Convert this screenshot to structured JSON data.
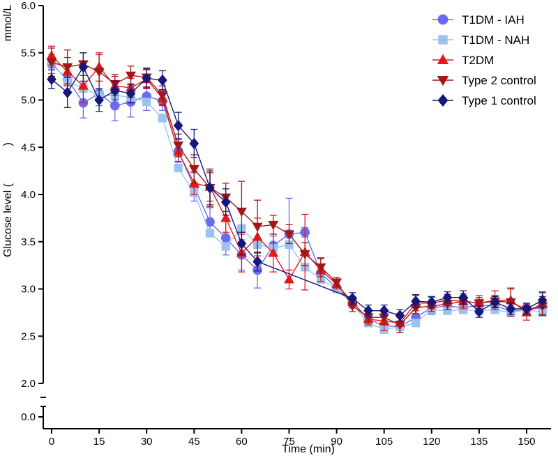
{
  "chart_data": {
    "type": "line",
    "title": "",
    "xlabel": "Time (min)",
    "ylabel": "Glucose level (   )",
    "ylabel_parts": [
      "Glucose level (",
      ")"
    ],
    "y_unit_label": "mmol/L",
    "xlim": [
      0,
      157
    ],
    "ylim": [
      2.0,
      6.0
    ],
    "y_break": true,
    "y_broken_tick": "0.0",
    "x_ticks": [
      0,
      15,
      30,
      45,
      60,
      75,
      90,
      105,
      120,
      135,
      150
    ],
    "x_tick_labels": [
      "0",
      "15",
      "30",
      "45",
      "60",
      "75",
      "90",
      "105",
      "120",
      "135",
      "150"
    ],
    "y_ticks": [
      2.0,
      2.5,
      3.0,
      3.5,
      4.0,
      4.5,
      5.0,
      5.5,
      6.0
    ],
    "y_tick_labels": [
      "2.0",
      "2.5",
      "3.0",
      "3.5",
      "4.0",
      "4.5",
      "5.0",
      "5.5",
      "6.0"
    ],
    "legend_position": "top-right",
    "series": [
      {
        "name": "T1DM - IAH",
        "color": "#6b6bef",
        "marker": "circle",
        "x": [
          0,
          5,
          10,
          15,
          20,
          25,
          30,
          35,
          40,
          45,
          50,
          55,
          60,
          65,
          70,
          75,
          80,
          85,
          90,
          95,
          100,
          105,
          110,
          115,
          120,
          125,
          130,
          135,
          140,
          145,
          150,
          155
        ],
        "y": [
          5.38,
          5.22,
          4.97,
          5.07,
          4.94,
          4.98,
          5.04,
          4.99,
          4.46,
          4.08,
          3.71,
          3.54,
          3.36,
          3.2,
          3.46,
          3.58,
          3.6,
          3.17,
          3.01,
          2.86,
          2.68,
          2.61,
          2.6,
          2.7,
          2.8,
          2.82,
          2.8,
          2.83,
          2.82,
          2.77,
          2.78,
          2.8
        ],
        "err": [
          0.1,
          0.15,
          0.16,
          0.13,
          0.16,
          0.16,
          0.15,
          0.1,
          0.12,
          0.15,
          0.15,
          0.18,
          0.16,
          0.19,
          0.1,
          0.38,
          0.05,
          0.05,
          0.04,
          0.06,
          0.06,
          0.06,
          0.06,
          0.07,
          0.07,
          0.06,
          0.06,
          0.06,
          0.06,
          0.06,
          0.06,
          0.08
        ]
      },
      {
        "name": "T1DM - NAH",
        "color": "#9cc3ef",
        "marker": "square",
        "x": [
          0,
          5,
          10,
          15,
          20,
          25,
          30,
          35,
          40,
          45,
          50,
          55,
          60,
          65,
          70,
          75,
          80,
          85,
          90,
          95,
          100,
          105,
          110,
          115,
          120,
          125,
          130,
          135,
          140,
          145,
          150,
          155
        ],
        "y": [
          5.4,
          5.2,
          5.12,
          5.05,
          5.05,
          5.03,
          4.98,
          4.81,
          4.28,
          4.02,
          3.59,
          3.45,
          3.64,
          3.47,
          3.43,
          3.47,
          3.23,
          3.1,
          3.0,
          2.84,
          2.64,
          2.57,
          2.6,
          2.64,
          2.78,
          2.77,
          2.78,
          2.77,
          2.78,
          2.75,
          2.78,
          2.75
        ]
      },
      {
        "name": "T2DM",
        "color": "#e01a1a",
        "marker": "triangle-up",
        "x": [
          0,
          5,
          10,
          15,
          20,
          25,
          30,
          35,
          40,
          45,
          50,
          55,
          60,
          65,
          70,
          75,
          80,
          85,
          90,
          95,
          100,
          105,
          110,
          115,
          120,
          125,
          130,
          135,
          140,
          145,
          150,
          155
        ],
        "y": [
          5.47,
          5.3,
          5.15,
          5.35,
          5.15,
          5.13,
          5.22,
          5.02,
          4.45,
          4.12,
          4.08,
          3.75,
          3.38,
          3.55,
          3.38,
          3.1,
          3.39,
          3.2,
          3.05,
          2.86,
          2.68,
          2.66,
          2.64,
          2.85,
          2.85,
          2.88,
          2.87,
          2.85,
          2.88,
          2.88,
          2.75,
          2.85
        ],
        "err": [
          0.1,
          0.15,
          0.18,
          0.15,
          0.1,
          0.1,
          0.1,
          0.08,
          0.1,
          0.12,
          0.15,
          0.15,
          0.2,
          0.2,
          0.2,
          0.1,
          0.4,
          0.12,
          0.05,
          0.06,
          0.06,
          0.1,
          0.1,
          0.08,
          0.06,
          0.06,
          0.08,
          0.08,
          0.1,
          0.12,
          0.08,
          0.12
        ]
      },
      {
        "name": "Type 2 control",
        "color": "#a01818",
        "marker": "triangle-down",
        "x": [
          0,
          5,
          10,
          15,
          20,
          25,
          30,
          35,
          40,
          45,
          50,
          55,
          60,
          65,
          70,
          75,
          80,
          85,
          90,
          95,
          100,
          105,
          110,
          115,
          120,
          125,
          130,
          135,
          140,
          145,
          150,
          155
        ],
        "y": [
          5.4,
          5.35,
          5.38,
          5.3,
          5.17,
          5.26,
          5.24,
          5.05,
          4.52,
          4.27,
          4.07,
          3.97,
          3.82,
          3.66,
          3.68,
          3.58,
          3.37,
          3.23,
          3.07,
          2.82,
          2.7,
          2.7,
          2.62,
          2.8,
          2.82,
          2.84,
          2.87,
          2.85,
          2.87,
          2.86,
          2.78,
          2.82
        ],
        "err": [
          0.15,
          0.18,
          0.12,
          0.18,
          0.1,
          0.1,
          0.1,
          0.1,
          0.12,
          0.15,
          0.2,
          0.15,
          0.32,
          0.28,
          0.1,
          0.1,
          0.12,
          0.1,
          0.05,
          0.06,
          0.06,
          0.08,
          0.08,
          0.06,
          0.06,
          0.06,
          0.06,
          0.06,
          0.06,
          0.15,
          0.05,
          0.1
        ]
      },
      {
        "name": "Type 1 control",
        "color": "#16177a",
        "marker": "diamond",
        "x": [
          0,
          5,
          10,
          15,
          20,
          25,
          30,
          35,
          40,
          45,
          50,
          55,
          60,
          65,
          95,
          100,
          105,
          110,
          115,
          120,
          125,
          130,
          135,
          140,
          145,
          150,
          155
        ],
        "y": [
          5.22,
          5.08,
          5.35,
          5.0,
          5.1,
          5.07,
          5.23,
          5.21,
          4.73,
          4.54,
          4.07,
          3.92,
          3.48,
          3.29,
          2.9,
          2.77,
          2.77,
          2.72,
          2.87,
          2.86,
          2.91,
          2.91,
          2.76,
          2.86,
          2.79,
          2.79,
          2.88
        ],
        "err": [
          0.1,
          0.16,
          0.15,
          0.12,
          0.1,
          0.1,
          0.1,
          0.1,
          0.14,
          0.15,
          0.18,
          0.14,
          0.12,
          0.1,
          0.06,
          0.06,
          0.06,
          0.06,
          0.07,
          0.06,
          0.06,
          0.07,
          0.06,
          0.06,
          0.06,
          0.06,
          0.08
        ]
      }
    ]
  }
}
